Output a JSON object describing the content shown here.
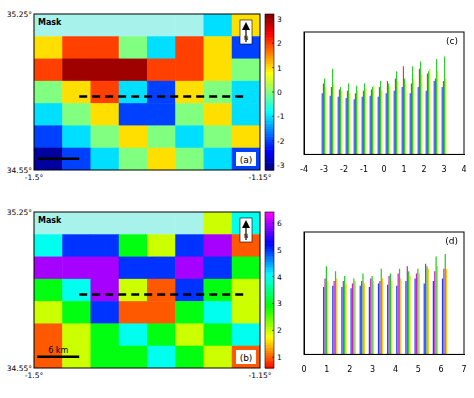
{
  "chart_data": [
    {
      "type": "heatmap",
      "label": "(a)",
      "mask_label": "Mask",
      "north": "N",
      "xlim": [
        -1.5,
        -1.15
      ],
      "xticks": [
        {
          "value": -1.5,
          "label": "-1.5°"
        },
        {
          "value": -1.15,
          "label": "-1.15°"
        }
      ],
      "ylim": [
        34.55,
        35.25
      ],
      "yticks": [
        {
          "value": 34.55,
          "label": "34.55°"
        },
        {
          "value": 35.25,
          "label": "35.25°"
        }
      ],
      "cells": [
        [
          null,
          null,
          null,
          null,
          null,
          null,
          -1,
          1
        ],
        [
          1,
          2,
          2,
          0,
          -1,
          2,
          1,
          -2
        ],
        [
          2,
          3,
          3,
          3,
          2,
          2,
          1,
          0
        ],
        [
          0,
          1,
          2,
          -1,
          -2,
          1,
          0,
          -1
        ],
        [
          -1,
          0,
          1,
          -2,
          -2,
          0,
          1,
          -1
        ],
        [
          -2,
          -1,
          0,
          1,
          0,
          -1,
          0,
          1
        ],
        [
          -3,
          -2,
          -1,
          0,
          1,
          0,
          -1,
          -2
        ]
      ],
      "colorbar": {
        "range": [
          -3.2,
          3.2
        ],
        "ticks": [
          -3,
          -2,
          -1,
          0,
          1,
          2,
          3
        ]
      },
      "profile": {
        "x": [
          -1.43,
          -1.17
        ],
        "y": [
          34.88,
          34.88
        ]
      },
      "scale_bar": {
        "x": [
          -1.495,
          -1.43
        ],
        "y": 34.6
      }
    },
    {
      "type": "heatmap",
      "label": "(b)",
      "mask_label": "Mask",
      "north": "N",
      "xlim": [
        -1.5,
        -1.15
      ],
      "xticks": [
        {
          "value": -1.5,
          "label": "-1.5°"
        },
        {
          "value": -1.15,
          "label": "-1.15°"
        }
      ],
      "ylim": [
        34.55,
        35.25
      ],
      "yticks": [
        {
          "value": 34.55,
          "label": "34.55°"
        },
        {
          "value": 35.25,
          "label": "35.25°"
        }
      ],
      "cells": [
        [
          null,
          null,
          null,
          null,
          null,
          null,
          2,
          4
        ],
        [
          4,
          5,
          5,
          3,
          2,
          5,
          6,
          1
        ],
        [
          6,
          6,
          6,
          5,
          5,
          6,
          5,
          3
        ],
        [
          3,
          4,
          6,
          2,
          1,
          5,
          3,
          2
        ],
        [
          2,
          3,
          5,
          1,
          1,
          3,
          4,
          2
        ],
        [
          1,
          2,
          3,
          4,
          3,
          2,
          3,
          4
        ],
        [
          1,
          2,
          3,
          3,
          4,
          3,
          2,
          1
        ]
      ],
      "colorbar": {
        "range": [
          0.6,
          6.4
        ],
        "ticks": [
          1,
          2,
          3,
          4,
          5,
          6
        ]
      },
      "profile": {
        "x": [
          -1.43,
          -1.17
        ],
        "y": [
          34.88,
          34.88
        ]
      },
      "scale_bar": {
        "x": [
          -1.495,
          -1.43
        ],
        "y": 34.6,
        "label": "6 km"
      }
    },
    {
      "type": "bar",
      "label": "(c)",
      "tick_labels": "x",
      "x": [
        -3.0,
        -2.6,
        -2.2,
        -1.8,
        -1.4,
        -1.0,
        -0.6,
        -0.2,
        0.2,
        0.6,
        1.0,
        1.4,
        1.8,
        2.2,
        2.6,
        3.0
      ],
      "xlim": [
        -4,
        4
      ],
      "xticks": [
        -4,
        -3,
        -2,
        -1,
        0,
        1,
        2,
        3,
        4
      ],
      "ylim": [
        0,
        1
      ],
      "series": [
        {
          "color": "#1f3fff",
          "values": [
            0.5,
            0.48,
            0.47,
            0.46,
            0.45,
            0.47,
            0.48,
            0.47,
            0.5,
            0.52,
            0.55,
            0.5,
            0.55,
            0.52,
            0.6,
            0.55
          ]
        },
        {
          "color": "#ff2020",
          "values": [
            0.58,
            0.55,
            0.53,
            0.52,
            0.5,
            0.52,
            0.53,
            0.55,
            0.6,
            0.62,
            0.72,
            0.58,
            0.7,
            0.66,
            0.62,
            0.6
          ]
        },
        {
          "color": "#22cc22",
          "values": [
            0.62,
            0.7,
            0.55,
            0.58,
            0.56,
            0.58,
            0.55,
            0.6,
            0.58,
            0.68,
            0.62,
            0.72,
            0.76,
            0.68,
            0.78,
            0.8
          ]
        },
        {
          "color": "#ffcc00",
          "values": [
            0.55,
            0.58,
            0.52,
            0.5,
            0.52,
            0.54,
            0.56,
            0.52,
            0.55,
            0.6,
            0.58,
            0.62,
            0.65,
            0.7,
            0.68,
            0.62
          ]
        }
      ]
    },
    {
      "type": "bar",
      "label": "(d)",
      "tick_labels": "x",
      "x": [
        0.95,
        1.35,
        1.75,
        2.15,
        2.55,
        2.95,
        3.35,
        3.75,
        4.15,
        4.55,
        4.95,
        5.35,
        5.75,
        6.15
      ],
      "xlim": [
        0,
        7
      ],
      "xticks": [
        0,
        1,
        2,
        3,
        4,
        5,
        6,
        7
      ],
      "ylim": [
        0,
        1
      ],
      "series": [
        {
          "color": "#1f3fff",
          "values": [
            0.55,
            0.56,
            0.55,
            0.54,
            0.56,
            0.55,
            0.58,
            0.57,
            0.56,
            0.6,
            0.62,
            0.58,
            0.6,
            0.62
          ]
        },
        {
          "color": "#cc22cc",
          "values": [
            0.62,
            0.6,
            0.6,
            0.58,
            0.6,
            0.62,
            0.6,
            0.64,
            0.66,
            0.72,
            0.66,
            0.74,
            0.68,
            0.7
          ]
        },
        {
          "color": "#22cc22",
          "values": [
            0.72,
            0.68,
            0.64,
            0.62,
            0.66,
            0.64,
            0.7,
            0.66,
            0.7,
            0.68,
            0.7,
            0.72,
            0.8,
            0.82
          ]
        },
        {
          "color": "#ffcc00",
          "values": [
            0.6,
            0.62,
            0.58,
            0.6,
            0.58,
            0.6,
            0.62,
            0.6,
            0.62,
            0.64,
            0.66,
            0.7,
            0.72,
            0.7
          ]
        }
      ]
    }
  ]
}
